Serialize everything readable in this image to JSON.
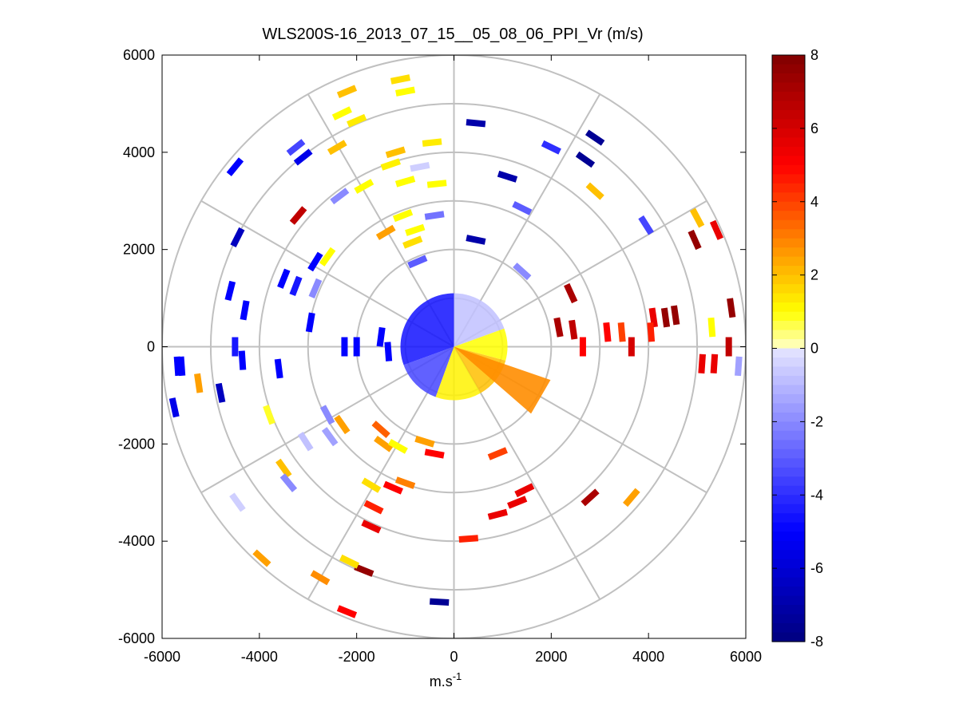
{
  "chart_data": {
    "type": "heatmap",
    "title": "WLS200S-16_2013_07_15__05_08_06_PPI_Vr (m/s)",
    "xlabel_base": "m.s",
    "xlabel_sup": "-1",
    "ylabel": "",
    "xlim": [
      -6000,
      6000
    ],
    "ylim": [
      -6000,
      6000
    ],
    "xticks": [
      -6000,
      -4000,
      -2000,
      0,
      2000,
      4000,
      6000
    ],
    "yticks": [
      6000,
      4000,
      2000,
      0,
      -2000,
      -4000,
      -6000
    ],
    "grid": "polar",
    "polar_rings_m": [
      1000,
      2000,
      3000,
      4000,
      5000,
      6000
    ],
    "polar_spokes_deg": [
      0,
      30,
      60,
      90,
      120,
      150,
      180,
      210,
      240,
      270,
      300,
      330
    ],
    "colorbar": {
      "range": [
        -8,
        8
      ],
      "ticks": [
        8,
        6,
        4,
        2,
        0,
        -2,
        -4,
        -6,
        -8
      ],
      "colormap": [
        {
          "v": -8,
          "c": "#00007f"
        },
        {
          "v": -5,
          "c": "#0000ff"
        },
        {
          "v": 0,
          "c": "#e6e6ff"
        },
        {
          "v": 0.01,
          "c": "#ffffc8"
        },
        {
          "v": 1,
          "c": "#ffff00"
        },
        {
          "v": 3,
          "c": "#ff8000"
        },
        {
          "v": 5,
          "c": "#ff0000"
        },
        {
          "v": 8,
          "c": "#800000"
        }
      ]
    },
    "near_field": {
      "radius_m": 1100,
      "sectors": [
        {
          "from_deg": 90,
          "to_deg": 200,
          "vr": -4.6
        },
        {
          "from_deg": 200,
          "to_deg": 250,
          "vr": -3.5
        },
        {
          "from_deg": 250,
          "to_deg": 300,
          "vr": 1.2
        },
        {
          "from_deg": 300,
          "to_deg": 345,
          "vr": 2.0
        },
        {
          "from_deg": 345,
          "to_deg": 380,
          "vr": 1.0
        },
        {
          "from_deg": 20,
          "to_deg": 90,
          "vr": -0.8
        }
      ],
      "plume": {
        "dir_deg": 330,
        "width_deg": 22,
        "length_m": 2100,
        "vr": 2.8
      }
    },
    "gates": [
      {
        "x": -5600,
        "y": -400,
        "vr": -5.0
      },
      {
        "x": -5680,
        "y": -400,
        "vr": -5.0
      },
      {
        "x": -4350,
        "y": -280,
        "vr": -5.0
      },
      {
        "x": -4500,
        "y": 0,
        "vr": -4.5
      },
      {
        "x": -5750,
        "y": -1250,
        "vr": -5.5
      },
      {
        "x": -5250,
        "y": -750,
        "vr": 2.5
      },
      {
        "x": -4800,
        "y": -950,
        "vr": -6.5
      },
      {
        "x": -4450,
        "y": 2250,
        "vr": -6.5
      },
      {
        "x": -4600,
        "y": 1150,
        "vr": -5.0
      },
      {
        "x": -4300,
        "y": 750,
        "vr": -5.0
      },
      {
        "x": -4500,
        "y": 3700,
        "vr": -5.0
      },
      {
        "x": -3250,
        "y": 4100,
        "vr": -3.5
      },
      {
        "x": -3100,
        "y": 3900,
        "vr": -5.5
      },
      {
        "x": -3200,
        "y": 2700,
        "vr": 6.5
      },
      {
        "x": -3500,
        "y": 1400,
        "vr": -5.0
      },
      {
        "x": -3250,
        "y": 1250,
        "vr": -4.5
      },
      {
        "x": -2850,
        "y": 1750,
        "vr": -5.0
      },
      {
        "x": -2600,
        "y": 1850,
        "vr": 1.0
      },
      {
        "x": -2950,
        "y": 500,
        "vr": -5.0
      },
      {
        "x": -3600,
        "y": -450,
        "vr": -5.0
      },
      {
        "x": -3800,
        "y": -1400,
        "vr": 0.8
      },
      {
        "x": -2600,
        "y": -1400,
        "vr": -2.0
      },
      {
        "x": -2550,
        "y": -1850,
        "vr": -1.5
      },
      {
        "x": -2300,
        "y": -1600,
        "vr": 2.5
      },
      {
        "x": -3500,
        "y": -2500,
        "vr": 2.0
      },
      {
        "x": -3400,
        "y": -2800,
        "vr": -2.0
      },
      {
        "x": -4450,
        "y": -3200,
        "vr": -0.5
      },
      {
        "x": -3950,
        "y": -4350,
        "vr": 2.5
      },
      {
        "x": -2750,
        "y": -4750,
        "vr": 2.8
      },
      {
        "x": -1850,
        "y": -4600,
        "vr": 7.5
      },
      {
        "x": -2150,
        "y": -4420,
        "vr": 1.5
      },
      {
        "x": -2200,
        "y": -5450,
        "vr": 5.0
      },
      {
        "x": -1650,
        "y": -3300,
        "vr": 4.5
      },
      {
        "x": -1700,
        "y": -3700,
        "vr": 5.5
      },
      {
        "x": -1000,
        "y": -2800,
        "vr": 3.0
      },
      {
        "x": -1250,
        "y": -2900,
        "vr": 5.0
      },
      {
        "x": -1450,
        "y": -2000,
        "vr": 2.5
      },
      {
        "x": -1500,
        "y": -1700,
        "vr": 3.5
      },
      {
        "x": -1150,
        "y": -2050,
        "vr": 1.0
      },
      {
        "x": -1700,
        "y": -2850,
        "vr": 1.5
      },
      {
        "x": -600,
        "y": -1950,
        "vr": 2.5
      },
      {
        "x": -400,
        "y": -2200,
        "vr": 5.0
      },
      {
        "x": 300,
        "y": -3950,
        "vr": 4.5
      },
      {
        "x": -300,
        "y": -5250,
        "vr": -7.5
      },
      {
        "x": 900,
        "y": -3450,
        "vr": 5.5
      },
      {
        "x": 1300,
        "y": -3200,
        "vr": 5.5
      },
      {
        "x": 1450,
        "y": -2950,
        "vr": 5.5
      },
      {
        "x": 900,
        "y": -2200,
        "vr": 4.0
      },
      {
        "x": 2800,
        "y": -3100,
        "vr": 7.0
      },
      {
        "x": 3650,
        "y": -3100,
        "vr": 2.5
      },
      {
        "x": -1100,
        "y": 5500,
        "vr": 1.5
      },
      {
        "x": -1000,
        "y": 5250,
        "vr": 1.0
      },
      {
        "x": -2200,
        "y": 5250,
        "vr": 2.0
      },
      {
        "x": -2300,
        "y": 4800,
        "vr": 1.0
      },
      {
        "x": -2000,
        "y": 4650,
        "vr": 1.3
      },
      {
        "x": -2400,
        "y": 4100,
        "vr": 2.0
      },
      {
        "x": -1200,
        "y": 4000,
        "vr": 2.0
      },
      {
        "x": -450,
        "y": 4200,
        "vr": 1.3
      },
      {
        "x": -1300,
        "y": 3750,
        "vr": 1.2
      },
      {
        "x": -700,
        "y": 3700,
        "vr": -0.5
      },
      {
        "x": -1000,
        "y": 3400,
        "vr": 1.0
      },
      {
        "x": -1850,
        "y": 3300,
        "vr": 1.0
      },
      {
        "x": -2350,
        "y": 3100,
        "vr": -2.0
      },
      {
        "x": -350,
        "y": 3350,
        "vr": 1.0
      },
      {
        "x": -1050,
        "y": 2700,
        "vr": 1.0
      },
      {
        "x": -800,
        "y": 2400,
        "vr": 1.0
      },
      {
        "x": -850,
        "y": 2150,
        "vr": 1.5
      },
      {
        "x": -1400,
        "y": 2350,
        "vr": 2.5
      },
      {
        "x": -400,
        "y": 2700,
        "vr": -2.5
      },
      {
        "x": 450,
        "y": 4600,
        "vr": -7.0
      },
      {
        "x": 1100,
        "y": 3500,
        "vr": -7.0
      },
      {
        "x": 1400,
        "y": 2850,
        "vr": -3.0
      },
      {
        "x": 2000,
        "y": 4100,
        "vr": -4.0
      },
      {
        "x": 2700,
        "y": 3850,
        "vr": -7.5
      },
      {
        "x": 2900,
        "y": 4300,
        "vr": -7.5
      },
      {
        "x": 2900,
        "y": 3200,
        "vr": 2.0
      },
      {
        "x": 3950,
        "y": 2500,
        "vr": -3.5
      },
      {
        "x": 5000,
        "y": 2650,
        "vr": 2.0
      },
      {
        "x": 5400,
        "y": 2400,
        "vr": 5.5
      },
      {
        "x": 4950,
        "y": 2200,
        "vr": 7.5
      },
      {
        "x": 5700,
        "y": 800,
        "vr": 7.5
      },
      {
        "x": 4550,
        "y": 650,
        "vr": 7.5
      },
      {
        "x": 4350,
        "y": 600,
        "vr": 7.5
      },
      {
        "x": 4100,
        "y": 600,
        "vr": 5.5
      },
      {
        "x": 4050,
        "y": 300,
        "vr": 4.5
      },
      {
        "x": 3450,
        "y": 300,
        "vr": 4.0
      },
      {
        "x": 3150,
        "y": 300,
        "vr": 5.0
      },
      {
        "x": 3650,
        "y": 0,
        "vr": 6.0
      },
      {
        "x": 2650,
        "y": 0,
        "vr": 5.0
      },
      {
        "x": 2450,
        "y": 350,
        "vr": 6.5
      },
      {
        "x": 2150,
        "y": 400,
        "vr": 7.0
      },
      {
        "x": 2400,
        "y": 1100,
        "vr": 7.0
      },
      {
        "x": 5300,
        "y": 400,
        "vr": 1.0
      },
      {
        "x": 5650,
        "y": 0,
        "vr": 6.5
      },
      {
        "x": 5100,
        "y": -350,
        "vr": 5.5
      },
      {
        "x": 5350,
        "y": -350,
        "vr": 5.5
      },
      {
        "x": 5850,
        "y": -400,
        "vr": -1.5
      },
      {
        "x": 1400,
        "y": 1550,
        "vr": -2.0
      },
      {
        "x": 450,
        "y": 2200,
        "vr": -7.0
      },
      {
        "x": -750,
        "y": 1750,
        "vr": -3.0
      },
      {
        "x": -2850,
        "y": 1200,
        "vr": -2.0
      },
      {
        "x": -2000,
        "y": 0,
        "vr": -5.0
      },
      {
        "x": -2250,
        "y": 0,
        "vr": -5.0
      },
      {
        "x": -1500,
        "y": 200,
        "vr": -5.0
      },
      {
        "x": -1350,
        "y": -100,
        "vr": -5.0
      },
      {
        "x": -3050,
        "y": -1950,
        "vr": -0.8
      }
    ]
  }
}
